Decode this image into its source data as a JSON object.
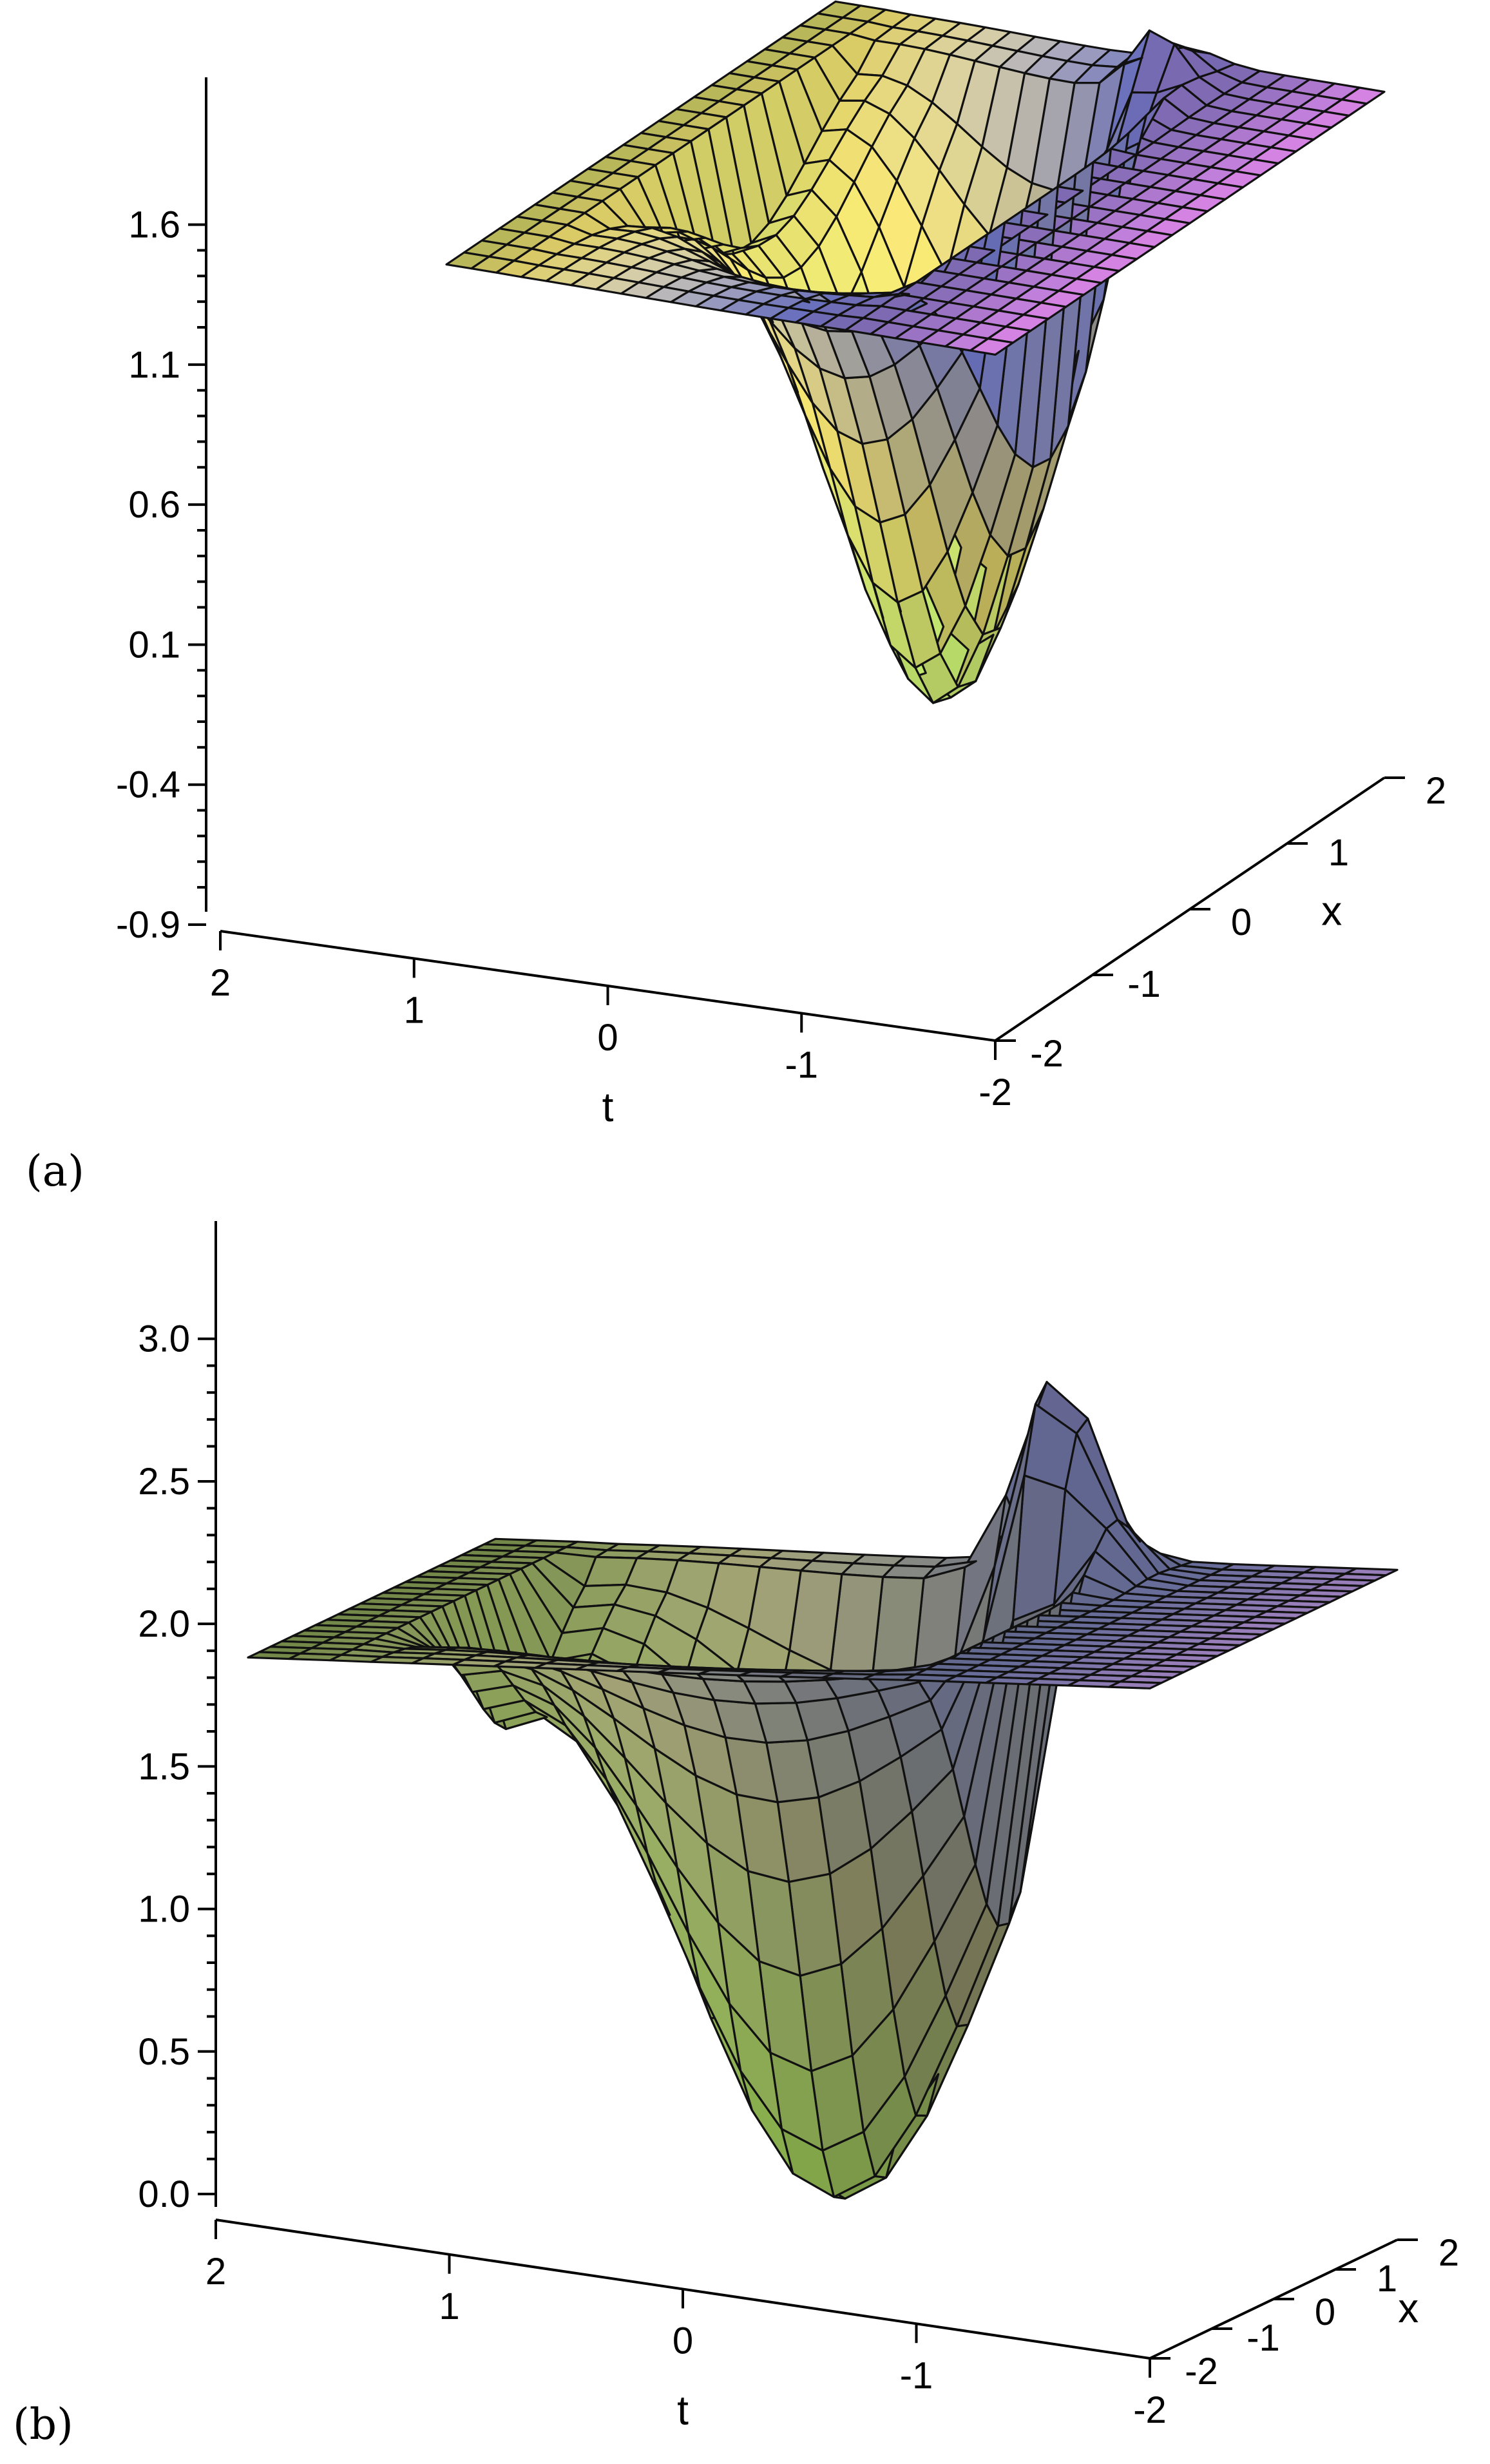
{
  "chart_data": [
    {
      "type": "surface3d",
      "panel_label": "(a)",
      "panel_letter": "a",
      "xlabel": "t",
      "ylabel": "x",
      "zlabel": "",
      "x_range": [
        -2,
        2
      ],
      "y_range": [
        -2,
        2
      ],
      "z_range": [
        -0.9,
        1.85
      ],
      "t_ticks": [
        "2",
        "1",
        "0",
        "-1",
        "-2"
      ],
      "x_ticks": [
        "-2",
        "-1",
        "0",
        "1",
        "2"
      ],
      "z_ticks": [
        "1.6",
        "1.1",
        "0.6",
        "0.1",
        "-0.4",
        "-0.9"
      ],
      "plateau_level": 1.55,
      "trough_min": -0.4,
      "peak_max": 1.85,
      "colormap": [
        "#58e8e8",
        "#a8f070",
        "#f0e070",
        "#8890f0",
        "#f080e0"
      ]
    },
    {
      "type": "surface3d",
      "panel_label": "(b)",
      "panel_letter": "b",
      "xlabel": "t",
      "ylabel": "x",
      "zlabel": "",
      "x_range": [
        -2,
        2
      ],
      "y_range": [
        -2,
        2
      ],
      "z_range": [
        0.0,
        3.3
      ],
      "t_ticks": [
        "2",
        "1",
        "0",
        "-1",
        "-2"
      ],
      "x_ticks": [
        "-2",
        "-1",
        "0",
        "1",
        "2"
      ],
      "z_ticks": [
        "3.0",
        "2.5",
        "2.0",
        "1.5",
        "1.0",
        "0.5",
        "0.0"
      ],
      "plateau_level": 2.35,
      "trough_min": 0.25,
      "peak_max": 3.3,
      "colormap": [
        "#40a890",
        "#88b848",
        "#9a9a70",
        "#8088c0",
        "#c070b0"
      ]
    }
  ]
}
